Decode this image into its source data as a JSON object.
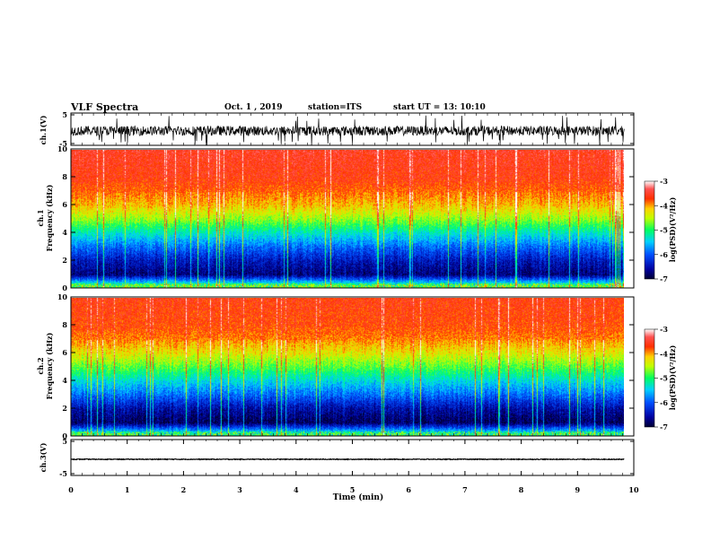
{
  "header": {
    "title": "VLF Spectra",
    "date": "Oct. 1 , 2019",
    "station": "station=ITS",
    "start_ut": "start UT =  13: 10:10"
  },
  "panels": {
    "ch1_wave": {
      "ylabel": "ch.1(V)",
      "yticks": [
        "5",
        "-5"
      ]
    },
    "ch1_spec": {
      "ylabel_top": "ch.1",
      "ylabel": "Frequency (kHz)",
      "yticks": [
        "0",
        "2",
        "4",
        "6",
        "8",
        "10"
      ]
    },
    "ch2_spec": {
      "ylabel_top": "ch.2",
      "ylabel": "Frequency (kHz)",
      "yticks": [
        "0",
        "2",
        "4",
        "6",
        "8",
        "10"
      ]
    },
    "ch3_wave": {
      "ylabel": "ch.3(V)",
      "yticks": [
        "5",
        "-5"
      ]
    }
  },
  "colorbar": {
    "ticks": [
      "-3",
      "-4",
      "-5",
      "-6",
      "-7"
    ],
    "label": "log(PSD)(V²/Hz)",
    "colors": [
      "#000033",
      "#000080",
      "#0000ff",
      "#0080ff",
      "#00ffff",
      "#00ff80",
      "#80ff00",
      "#ffff00",
      "#ff8000",
      "#ff0000",
      "#ff4040",
      "#ffffff"
    ]
  },
  "xaxis": {
    "label": "Time (min)",
    "ticks": [
      "0",
      "1",
      "2",
      "3",
      "4",
      "5",
      "6",
      "7",
      "8",
      "9",
      "10"
    ]
  },
  "chart_data": [
    {
      "type": "line",
      "title": "",
      "ylabel": "ch.1(V)",
      "xlabel": "",
      "xlim": [
        0,
        10
      ],
      "ylim": [
        -5,
        5
      ],
      "x_data_extent": [
        0,
        9.83
      ],
      "series": [
        {
          "baseline_v": -0.5,
          "noise_amplitude_v": 1.5,
          "spike_min_v": -5
        }
      ]
    },
    {
      "type": "heatmap",
      "ylabel": "Frequency (kHz)",
      "xlim": [
        0,
        10
      ],
      "ylim": [
        0,
        10
      ],
      "colorbar_range": [
        -7,
        -3
      ],
      "profile": [
        {
          "freq_khz": 0.2,
          "log_psd": -5.0
        },
        {
          "freq_khz": 1.0,
          "log_psd": -6.7
        },
        {
          "freq_khz": 2.0,
          "log_psd": -6.4
        },
        {
          "freq_khz": 3.0,
          "log_psd": -5.9
        },
        {
          "freq_khz": 4.0,
          "log_psd": -5.3
        },
        {
          "freq_khz": 5.0,
          "log_psd": -4.6
        },
        {
          "freq_khz": 6.0,
          "log_psd": -4.1
        },
        {
          "freq_khz": 7.0,
          "log_psd": -3.8
        },
        {
          "freq_khz": 8.0,
          "log_psd": -3.6
        },
        {
          "freq_khz": 10.0,
          "log_psd": -3.5
        }
      ]
    },
    {
      "type": "heatmap",
      "ylabel": "Frequency (kHz)",
      "xlim": [
        0,
        10
      ],
      "ylim": [
        0,
        10
      ],
      "colorbar_range": [
        -7,
        -3
      ],
      "profile": [
        {
          "freq_khz": 0.2,
          "log_psd": -5.2
        },
        {
          "freq_khz": 1.0,
          "log_psd": -6.8
        },
        {
          "freq_khz": 2.0,
          "log_psd": -6.5
        },
        {
          "freq_khz": 3.0,
          "log_psd": -5.9
        },
        {
          "freq_khz": 4.0,
          "log_psd": -5.4
        },
        {
          "freq_khz": 5.0,
          "log_psd": -4.8
        },
        {
          "freq_khz": 6.0,
          "log_psd": -4.3
        },
        {
          "freq_khz": 7.0,
          "log_psd": -3.9
        },
        {
          "freq_khz": 8.0,
          "log_psd": -3.7
        },
        {
          "freq_khz": 10.0,
          "log_psd": -3.6
        }
      ]
    },
    {
      "type": "line",
      "ylabel": "ch.3(V)",
      "xlabel": "Time (min)",
      "xlim": [
        0,
        10
      ],
      "ylim": [
        -5,
        5
      ],
      "x_data_extent": [
        0,
        9.83
      ],
      "series": [
        {
          "baseline_v": -0.5,
          "noise_amplitude_v": 0.1
        }
      ]
    }
  ]
}
